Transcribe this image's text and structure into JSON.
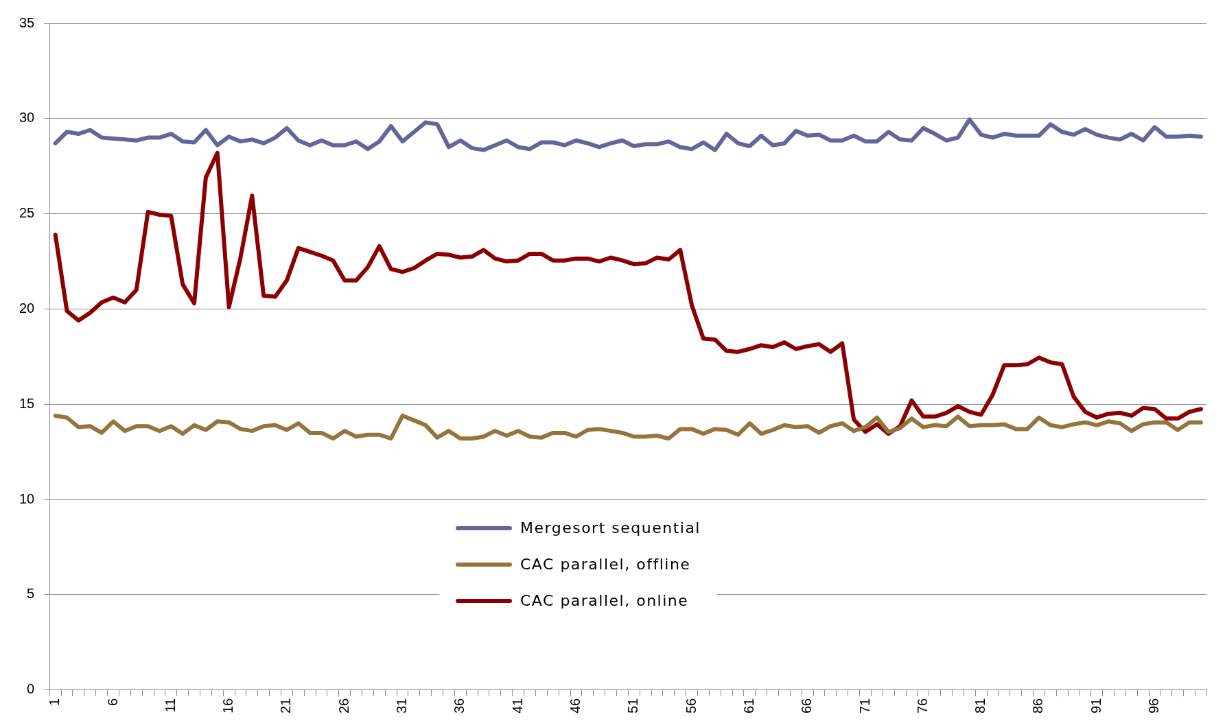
{
  "chart_data": {
    "type": "line",
    "categories": [
      "1",
      null,
      null,
      null,
      null,
      "6",
      null,
      null,
      null,
      null,
      "11",
      null,
      null,
      null,
      null,
      "16",
      null,
      null,
      null,
      null,
      "21",
      null,
      null,
      null,
      null,
      "26",
      null,
      null,
      null,
      null,
      "31",
      null,
      null,
      null,
      null,
      "36",
      null,
      null,
      null,
      null,
      "41",
      null,
      null,
      null,
      null,
      "46",
      null,
      null,
      null,
      null,
      "51",
      null,
      null,
      null,
      null,
      "56",
      null,
      null,
      null,
      null,
      "61",
      null,
      null,
      null,
      null,
      "66",
      null,
      null,
      null,
      null,
      "71",
      null,
      null,
      null,
      null,
      "76",
      null,
      null,
      null,
      null,
      "81",
      null,
      null,
      null,
      null,
      "86",
      null,
      null,
      null,
      null,
      "91",
      null,
      null,
      null,
      null,
      "96",
      null,
      null,
      null,
      null
    ],
    "series": [
      {
        "name": "Mergesort sequential",
        "color": "#65659a",
        "values": [
          28.7,
          29.3,
          29.2,
          29.4,
          29.0,
          28.95,
          28.9,
          28.85,
          29.0,
          29.0,
          29.2,
          28.8,
          28.75,
          29.4,
          28.6,
          29.05,
          28.8,
          28.9,
          28.7,
          29.0,
          29.5,
          28.85,
          28.6,
          28.85,
          28.6,
          28.6,
          28.8,
          28.4,
          28.8,
          29.6,
          28.8,
          29.3,
          29.8,
          29.7,
          28.5,
          28.85,
          28.45,
          28.35,
          28.6,
          28.85,
          28.5,
          28.4,
          28.75,
          28.75,
          28.6,
          28.85,
          28.7,
          28.5,
          28.7,
          28.85,
          28.55,
          28.65,
          28.65,
          28.8,
          28.5,
          28.4,
          28.75,
          28.35,
          29.2,
          28.7,
          28.55,
          29.1,
          28.6,
          28.7,
          29.35,
          29.1,
          29.15,
          28.85,
          28.85,
          29.1,
          28.8,
          28.8,
          29.3,
          28.9,
          28.85,
          29.5,
          29.2,
          28.85,
          29.0,
          29.95,
          29.15,
          29.0,
          29.2,
          29.1,
          29.1,
          29.1,
          29.7,
          29.3,
          29.15,
          29.45,
          29.15,
          29.0,
          28.9,
          29.2,
          28.85,
          29.55,
          29.05,
          29.05,
          29.1,
          29.05
        ]
      },
      {
        "name": "CAC parallel, offline",
        "color": "#94763d",
        "values": [
          14.4,
          14.3,
          13.8,
          13.85,
          13.5,
          14.1,
          13.6,
          13.85,
          13.85,
          13.6,
          13.85,
          13.45,
          13.9,
          13.65,
          14.1,
          14.05,
          13.7,
          13.6,
          13.85,
          13.9,
          13.65,
          14.0,
          13.5,
          13.5,
          13.2,
          13.6,
          13.3,
          13.4,
          13.4,
          13.2,
          14.4,
          14.15,
          13.9,
          13.25,
          13.6,
          13.2,
          13.2,
          13.3,
          13.6,
          13.35,
          13.6,
          13.3,
          13.25,
          13.5,
          13.5,
          13.3,
          13.65,
          13.7,
          13.6,
          13.5,
          13.3,
          13.3,
          13.35,
          13.2,
          13.7,
          13.7,
          13.45,
          13.7,
          13.65,
          13.4,
          14.0,
          13.45,
          13.65,
          13.9,
          13.8,
          13.85,
          13.5,
          13.85,
          14.0,
          13.6,
          13.8,
          14.3,
          13.55,
          13.75,
          14.25,
          13.8,
          13.9,
          13.85,
          14.35,
          13.85,
          13.9,
          13.9,
          13.95,
          13.7,
          13.7,
          14.3,
          13.9,
          13.8,
          13.95,
          14.05,
          13.9,
          14.1,
          14.0,
          13.6,
          13.95,
          14.05,
          14.05,
          13.65,
          14.05,
          14.05
        ]
      },
      {
        "name": "CAC parallel, online",
        "color": "#8b0000",
        "values": [
          23.9,
          19.9,
          19.4,
          19.8,
          20.35,
          20.6,
          20.35,
          21.0,
          25.1,
          24.95,
          24.9,
          21.3,
          20.3,
          26.9,
          28.2,
          20.1,
          22.7,
          25.95,
          20.7,
          20.65,
          21.5,
          23.2,
          23.0,
          22.8,
          22.55,
          21.5,
          21.5,
          22.2,
          23.3,
          22.1,
          21.95,
          22.15,
          22.55,
          22.9,
          22.85,
          22.7,
          22.75,
          23.1,
          22.65,
          22.5,
          22.55,
          22.9,
          22.9,
          22.55,
          22.55,
          22.65,
          22.65,
          22.5,
          22.7,
          22.55,
          22.35,
          22.4,
          22.7,
          22.6,
          23.1,
          20.2,
          18.45,
          18.4,
          17.8,
          17.75,
          17.9,
          18.1,
          18.0,
          18.25,
          17.9,
          18.05,
          18.15,
          17.75,
          18.2,
          14.2,
          13.55,
          13.95,
          13.45,
          13.85,
          15.2,
          14.35,
          14.35,
          14.55,
          14.9,
          14.6,
          14.45,
          15.5,
          17.05,
          17.05,
          17.1,
          17.45,
          17.2,
          17.1,
          15.4,
          14.6,
          14.3,
          14.5,
          14.55,
          14.4,
          14.8,
          14.75,
          14.25,
          14.25,
          14.6,
          14.75
        ]
      }
    ],
    "ylim": [
      0,
      35
    ],
    "yticks": [
      0,
      5,
      10,
      15,
      20,
      25,
      30,
      35
    ],
    "grid": "y",
    "legend": "bottom",
    "marker": "none",
    "line_style": "solid"
  }
}
